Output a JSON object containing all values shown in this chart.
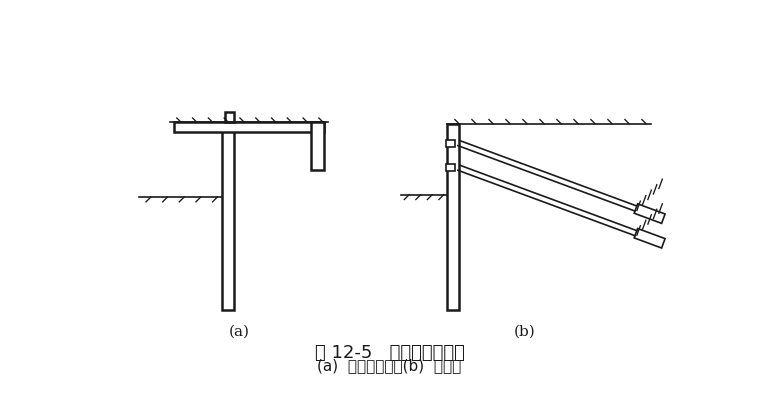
{
  "title1": "图 12-5   拉锚式支护结构",
  "title2": "(a)  地面拉锚式；(b)  锚杆式",
  "label_a": "(a)",
  "label_b": "(b)",
  "bg_color": "#ffffff",
  "line_color": "#1a1a1a",
  "title_fontsize": 13,
  "subtitle_fontsize": 11
}
